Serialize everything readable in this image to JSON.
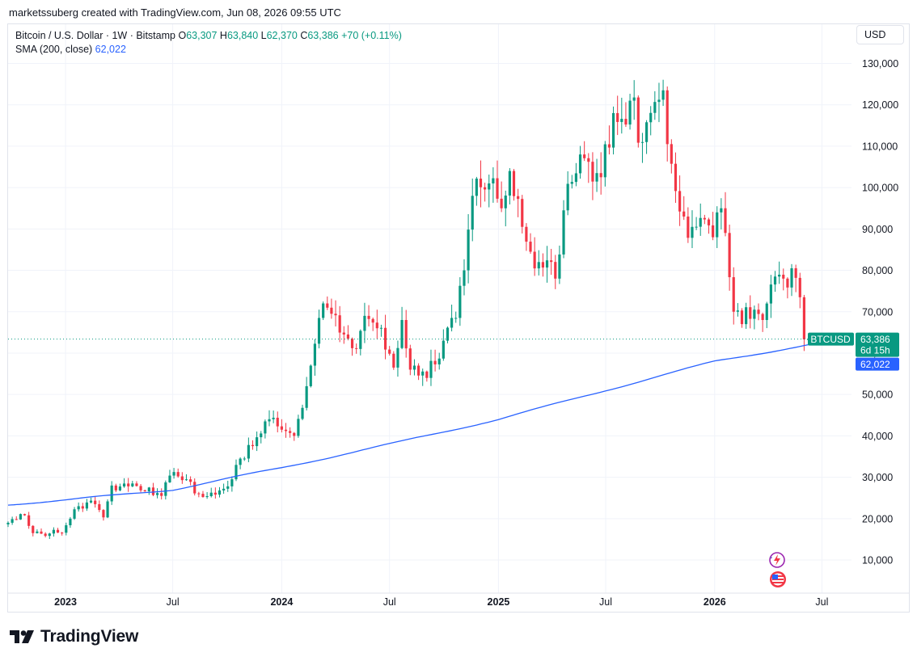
{
  "header": {
    "attribution": "marketssuberg created with TradingView.com, Jun 08, 2026 09:55 UTC"
  },
  "legend": {
    "symbol": "Bitcoin / U.S. Dollar · 1W · Bitstamp",
    "o_label": "O",
    "o_value": "63,307",
    "h_label": "H",
    "h_value": "63,840",
    "l_label": "L",
    "l_value": "62,370",
    "c_label": "C",
    "c_value": "63,386",
    "change": "+70 (+0.11%)",
    "sma_label": "SMA (200, close)",
    "sma_value": "62,022"
  },
  "toolbar": {
    "currency": "USD"
  },
  "badges": {
    "symbol": "BTCUSD",
    "price": "63,386",
    "countdown": "6d 15h",
    "sma": "62,022"
  },
  "footer": {
    "brand": "TradingView"
  },
  "colors": {
    "up": "#089981",
    "down": "#f23645",
    "sma": "#2962ff",
    "grid": "#f0f3fa",
    "text": "#131722"
  },
  "chart_data": {
    "type": "candlestick",
    "symbol": "BTCUSD",
    "interval": "1W",
    "y_axis": {
      "side": "right",
      "ylim": [
        2000,
        134000
      ],
      "ticks": [
        10000,
        20000,
        30000,
        40000,
        50000,
        60000,
        70000,
        80000,
        90000,
        100000,
        110000,
        120000,
        130000
      ],
      "tick_labels": [
        "10,000",
        "20,000",
        "30,000",
        "40,000",
        "50,000",
        "60,000",
        "70,000",
        "80,000",
        "90,000",
        "100,000",
        "110,000",
        "120,000",
        "130,000"
      ]
    },
    "x_axis": {
      "range": [
        "2022-09-26",
        "2026-08-20"
      ],
      "ticks": [
        {
          "date": "2023-01-01",
          "label": "2023",
          "bold": true
        },
        {
          "date": "2023-07-01",
          "label": "Jul",
          "bold": false
        },
        {
          "date": "2024-01-01",
          "label": "2024",
          "bold": true
        },
        {
          "date": "2024-07-01",
          "label": "Jul",
          "bold": false
        },
        {
          "date": "2025-01-01",
          "label": "2025",
          "bold": true
        },
        {
          "date": "2025-07-01",
          "label": "Jul",
          "bold": false
        },
        {
          "date": "2026-01-01",
          "label": "2026",
          "bold": true
        },
        {
          "date": "2026-07-01",
          "label": "Jul",
          "bold": false
        }
      ]
    },
    "grid": true,
    "current_price": 63386,
    "sma_last": 62022,
    "close_anchors": [
      [
        "2022-09-26",
        19000
      ],
      [
        "2022-10-24",
        20800
      ],
      [
        "2022-11-07",
        16500
      ],
      [
        "2022-12-26",
        16600
      ],
      [
        "2023-01-23",
        23000
      ],
      [
        "2023-02-20",
        23500
      ],
      [
        "2023-03-06",
        20300
      ],
      [
        "2023-03-20",
        28000
      ],
      [
        "2023-04-17",
        27800
      ],
      [
        "2023-06-12",
        25500
      ],
      [
        "2023-06-26",
        30400
      ],
      [
        "2023-07-24",
        29500
      ],
      [
        "2023-08-14",
        26000
      ],
      [
        "2023-09-11",
        25800
      ],
      [
        "2023-10-02",
        27800
      ],
      [
        "2023-10-23",
        34500
      ],
      [
        "2023-12-04",
        43500
      ],
      [
        "2023-12-25",
        42300
      ],
      [
        "2024-01-22",
        40000
      ],
      [
        "2024-02-12",
        52000
      ],
      [
        "2024-03-04",
        68500
      ],
      [
        "2024-03-11",
        72000
      ],
      [
        "2024-04-15",
        64500
      ],
      [
        "2024-05-06",
        61000
      ],
      [
        "2024-05-20",
        69000
      ],
      [
        "2024-06-10",
        66000
      ],
      [
        "2024-07-08",
        56500
      ],
      [
        "2024-07-22",
        68000
      ],
      [
        "2024-08-05",
        56000
      ],
      [
        "2024-09-02",
        54000
      ],
      [
        "2024-09-30",
        63000
      ],
      [
        "2024-10-21",
        68500
      ],
      [
        "2024-11-04",
        80000
      ],
      [
        "2024-11-18",
        98000
      ],
      [
        "2024-12-16",
        101000
      ],
      [
        "2025-01-06",
        95000
      ],
      [
        "2025-01-20",
        104000
      ],
      [
        "2025-02-24",
        84500
      ],
      [
        "2025-03-10",
        82000
      ],
      [
        "2025-04-07",
        78000
      ],
      [
        "2025-04-21",
        94500
      ],
      [
        "2025-05-19",
        108000
      ],
      [
        "2025-06-16",
        103500
      ],
      [
        "2025-07-14",
        118000
      ],
      [
        "2025-08-11",
        121000
      ],
      [
        "2025-09-01",
        111000
      ],
      [
        "2025-10-06",
        123500
      ],
      [
        "2025-10-13",
        110500
      ],
      [
        "2025-11-10",
        93000
      ],
      [
        "2025-11-24",
        90500
      ],
      [
        "2025-12-29",
        88000
      ],
      [
        "2026-01-12",
        95000
      ],
      [
        "2026-02-02",
        70000
      ],
      [
        "2026-02-16",
        67000
      ],
      [
        "2026-03-09",
        70500
      ],
      [
        "2026-03-23",
        68000
      ],
      [
        "2026-04-13",
        78500
      ],
      [
        "2026-04-27",
        78000
      ],
      [
        "2026-05-11",
        80500
      ],
      [
        "2026-05-25",
        73500
      ],
      [
        "2026-06-01",
        63316
      ],
      [
        "2026-06-08",
        63386
      ]
    ],
    "last_candle": {
      "date": "2026-06-08",
      "open": 63307,
      "high": 63840,
      "low": 62370,
      "close": 63386
    },
    "sma_series": {
      "name": "SMA (200, close)",
      "points": [
        [
          "2022-09-26",
          23400
        ],
        [
          "2023-01-01",
          24500
        ],
        [
          "2023-07-01",
          27000
        ],
        [
          "2024-01-01",
          32300
        ],
        [
          "2024-07-01",
          38000
        ],
        [
          "2025-01-01",
          44000
        ],
        [
          "2025-07-01",
          51000
        ],
        [
          "2026-01-01",
          58000
        ],
        [
          "2026-06-08",
          62022
        ]
      ]
    }
  }
}
